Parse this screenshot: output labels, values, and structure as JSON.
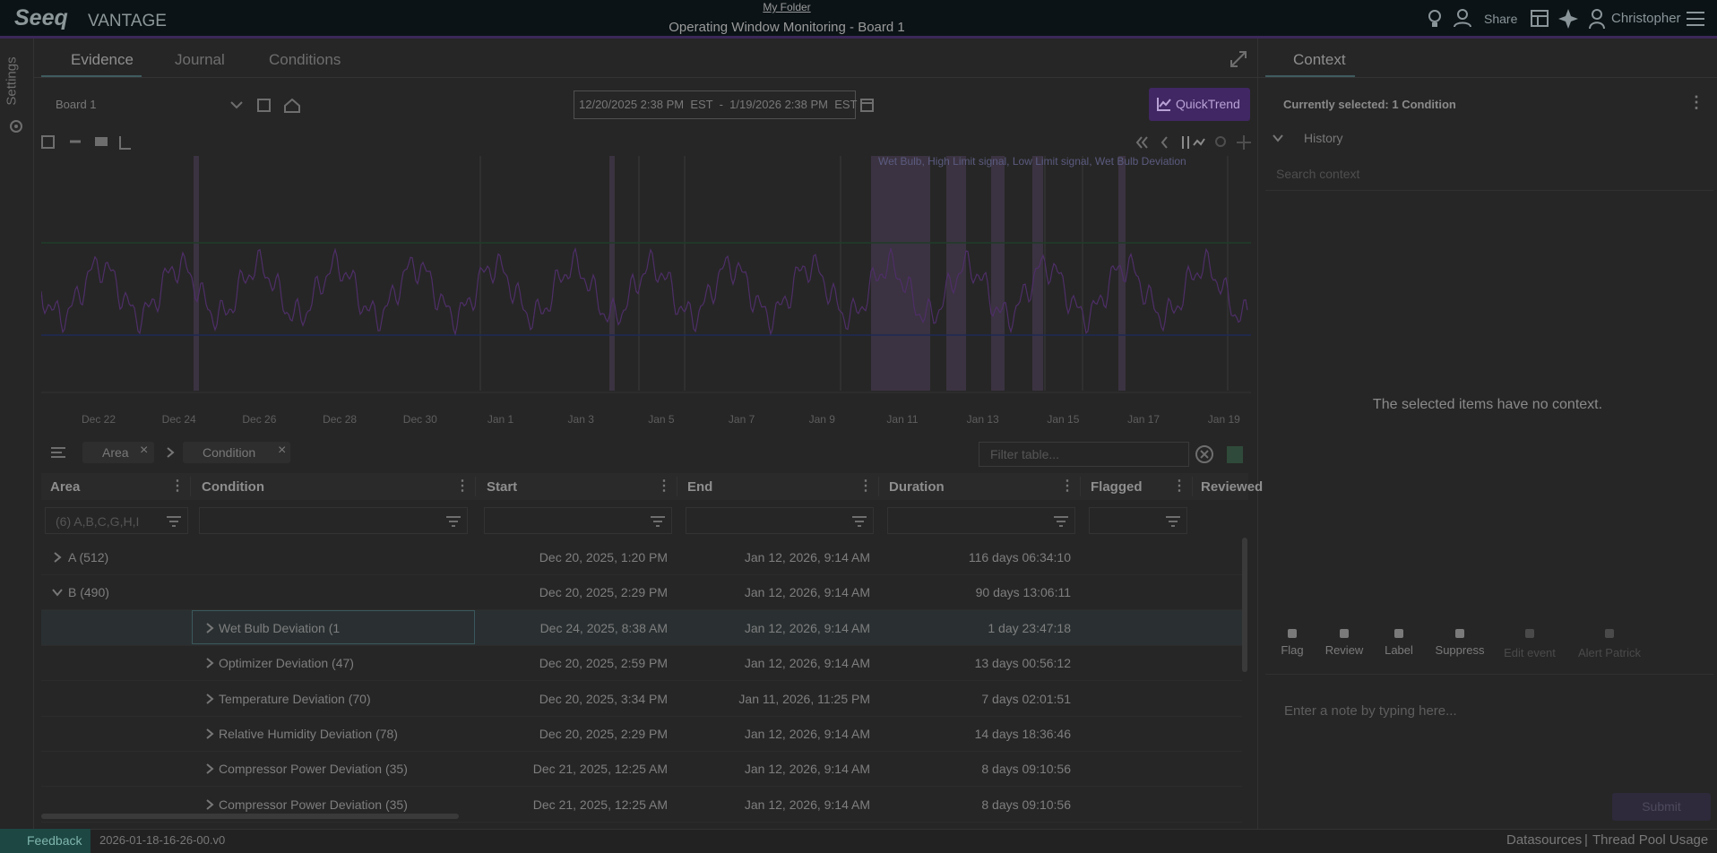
{
  "header": {
    "brand": "Seeq",
    "product": "VANTAGE",
    "folder": "My Folder",
    "title": "Operating Window Monitoring - Board 1",
    "share": "Share",
    "user": "Christopher"
  },
  "sidebar": {
    "settings": "Settings"
  },
  "tabs": [
    "Evidence",
    "Journal",
    "Conditions"
  ],
  "toolbar": {
    "board": "Board 1",
    "range": "12/20/2025 2:38 PM  EST  -  1/19/2026 2:38 PM  EST",
    "quicktrend": "QuickTrend"
  },
  "trend": {
    "legend": "Wet Bulb, High Limit signal, Low Limit signal, Wet Bulb Deviation",
    "x_labels": [
      "Dec 22",
      "Dec 24",
      "Dec 26",
      "Dec 28",
      "Dec 30",
      "Jan 1",
      "Jan 3",
      "Jan 5",
      "Jan 7",
      "Jan 9",
      "Jan 11",
      "Jan 13",
      "Jan 15",
      "Jan 17",
      "Jan 19"
    ]
  },
  "grouping": [
    "Area",
    "Condition"
  ],
  "filter_placeholder": "Filter table...",
  "table": {
    "columns": [
      "Area",
      "Condition",
      "Start",
      "End",
      "Duration",
      "Flagged",
      "Reviewed"
    ],
    "area_filter": "(6) A,B,C,G,H,I",
    "groups": [
      {
        "label": "A (512)",
        "start": "Dec 20, 2025, 1:20 PM",
        "end": "Jan 12, 2026, 9:14 AM",
        "duration": "116 days 06:34:10",
        "expanded": false,
        "children": []
      },
      {
        "label": "B (490)",
        "start": "Dec 20, 2025, 2:29 PM",
        "end": "Jan 12, 2026, 9:14 AM",
        "duration": "90 days 13:06:11",
        "expanded": true,
        "children": [
          {
            "label": "Wet Bulb Deviation (1",
            "start": "Dec 24, 2025, 8:38 AM",
            "end": "Jan 12, 2026, 9:14 AM",
            "duration": "1 day 23:47:18"
          },
          {
            "label": "Optimizer Deviation (47)",
            "start": "Dec 20, 2025, 2:59 PM",
            "end": "Jan 12, 2026, 9:14 AM",
            "duration": "13 days 00:56:12"
          },
          {
            "label": "Temperature Deviation (70)",
            "start": "Dec 20, 2025, 3:34 PM",
            "end": "Jan 11, 2026, 11:25 PM",
            "duration": "7 days 02:01:51"
          },
          {
            "label": "Relative Humidity Deviation (78)",
            "start": "Dec 20, 2025, 2:29 PM",
            "end": "Jan 12, 2026, 9:14 AM",
            "duration": "14 days 18:36:46"
          },
          {
            "label": "Compressor Power Deviation (35)",
            "start": "Dec 21, 2025, 12:25 AM",
            "end": "Jan 12, 2026, 9:14 AM",
            "duration": "8 days 09:10:56"
          },
          {
            "label": "Compressor Power Deviation (35)",
            "start": "Dec 21, 2025, 12:25 AM",
            "end": "Jan 12, 2026, 9:14 AM",
            "duration": "8 days 09:10:56"
          }
        ]
      }
    ]
  },
  "context": {
    "tab": "Context",
    "selected": "Currently selected: 1 Condition",
    "history": "History",
    "search": "Search context",
    "empty": "The selected items have no context.",
    "actions": [
      "Flag",
      "Review",
      "Label",
      "Suppress",
      "Edit event",
      "Alert Patrick"
    ],
    "note": "Enter a note by typing here...",
    "submit": "Submit"
  },
  "footer": {
    "feedback": "Feedback",
    "version": "2026-01-18-16-26-00.v0",
    "datasources": "Datasources",
    "threadpool": "Thread Pool Usage"
  }
}
